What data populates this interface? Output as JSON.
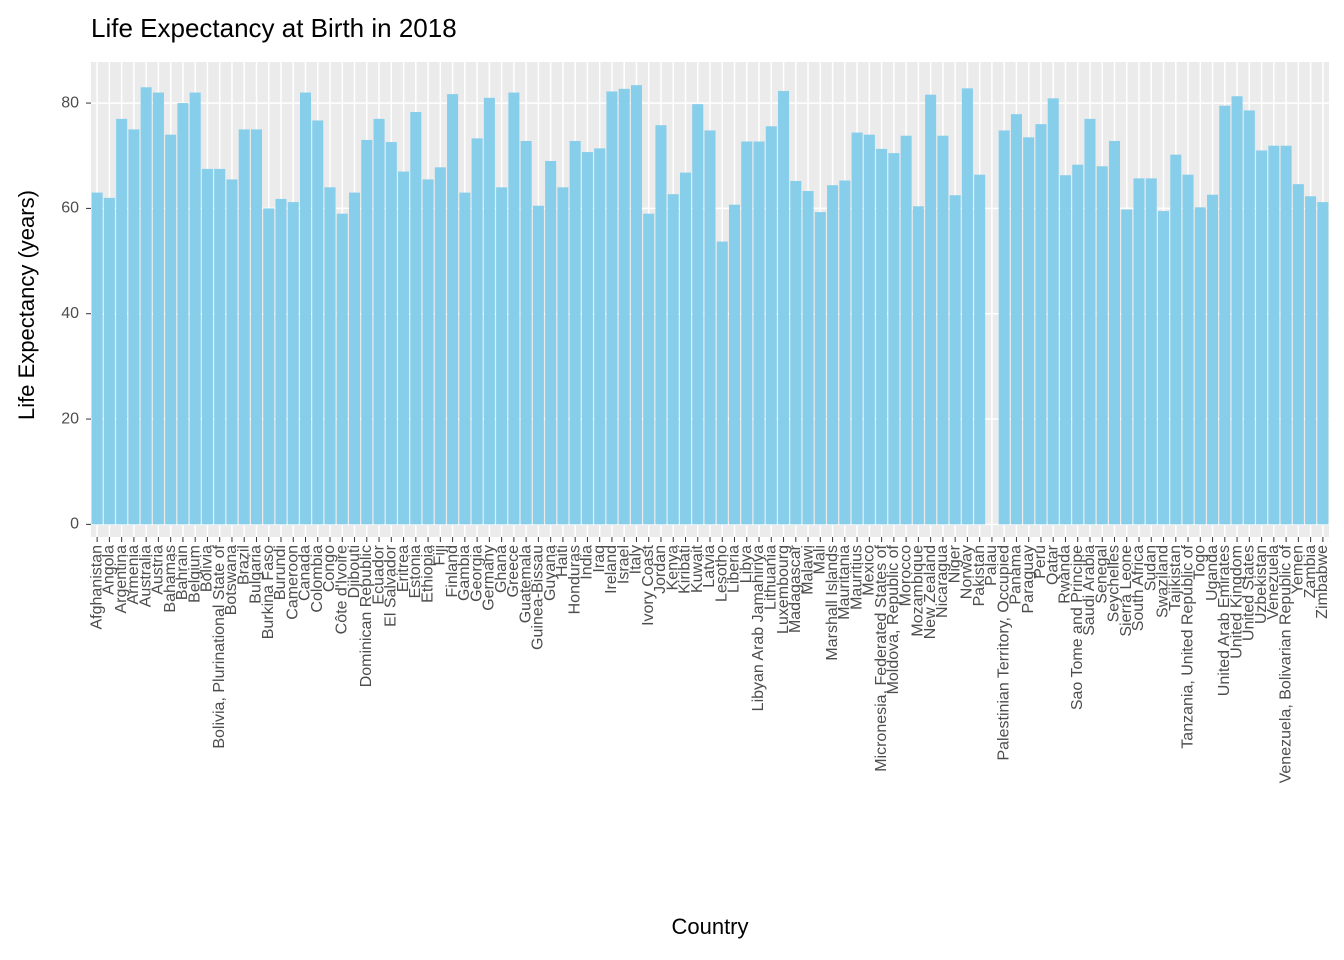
{
  "chart_data": {
    "type": "bar",
    "title": "Life Expectancy at Birth in 2018",
    "x_label": "Country",
    "y_label": "Life Expectancy (years)",
    "color": "#87ceeb",
    "grid": true,
    "categories": [
      "Afghanistan",
      "Angola",
      "Argentina",
      "Armenia",
      "Australia",
      "Austria",
      "Bahamas",
      "Bahrain",
      "Belgium",
      "Bolivia",
      "Bolivia, Plurinational State of",
      "Botswana",
      "Brazil",
      "Bulgaria",
      "Burkina Faso",
      "Burundi",
      "Cameroon",
      "Canada",
      "Colombia",
      "Congo",
      "Côte d'Ivoire",
      "Djibouti",
      "Dominican Republic",
      "Ecuador",
      "El Salvador",
      "Eritrea",
      "Estonia",
      "Ethiopia",
      "Fiji",
      "Finland",
      "Gambia",
      "Georgia",
      "Germany",
      "Ghana",
      "Greece",
      "Guatemala",
      "Guinea-Bissau",
      "Guyana",
      "Haiti",
      "Honduras",
      "India",
      "Iraq",
      "Ireland",
      "Israel",
      "Italy",
      "Ivory Coast",
      "Jordan",
      "Kenya",
      "Kiribati",
      "Kuwait",
      "Latvia",
      "Lesotho",
      "Liberia",
      "Libya",
      "Libyan Arab Jamahiriya",
      "Lithuania",
      "Luxembourg",
      "Madagascar",
      "Malawi",
      "Mali",
      "Marshall Islands",
      "Mauritania",
      "Mauritius",
      "Mexico",
      "Micronesia, Federated States of",
      "Moldova, Republic of",
      "Morocco",
      "Mozambique",
      "New Zealand",
      "Nicaragua",
      "Niger",
      "Norway",
      "Pakistan",
      "Palau",
      "Palestinian Territory, Occupied",
      "Panama",
      "Paraguay",
      "Peru",
      "Qatar",
      "Rwanda",
      "Sao Tome and Principe",
      "Saudi Arabia",
      "Senegal",
      "Seychelles",
      "Sierra Leone",
      "South Africa",
      "Sudan",
      "Swaziland",
      "Tajikistan",
      "Tanzania, United Republic of",
      "Togo",
      "Uganda",
      "United Arab Emirates",
      "United Kingdom",
      "United States",
      "Uzbekistan",
      "Venezuela",
      "Venezuela, Bolivarian Republic of",
      "Yemen",
      "Zambia",
      "Zimbabwe"
    ],
    "values": [
      63,
      62,
      77,
      75,
      83,
      82,
      74,
      80,
      82,
      67.5,
      67.5,
      65.5,
      75,
      75,
      60,
      61.8,
      61.2,
      82,
      76.7,
      64,
      59,
      63,
      73,
      77,
      72.6,
      67,
      78.3,
      65.5,
      67.8,
      81.7,
      63,
      73.3,
      81,
      64,
      82,
      72.8,
      60.5,
      69,
      64,
      72.8,
      70.7,
      71.4,
      82.2,
      82.7,
      83.4,
      59,
      75.8,
      62.7,
      66.8,
      79.8,
      74.8,
      53.7,
      60.7,
      72.7,
      72.7,
      75.6,
      82.3,
      65.2,
      63.3,
      59.3,
      64.4,
      65.3,
      74.4,
      74,
      71.3,
      70.5,
      73.8,
      60.4,
      81.6,
      73.8,
      62.5,
      82.8,
      66.4,
      null,
      74.8,
      77.9,
      73.5,
      76,
      80.9,
      66.3,
      68.3,
      77,
      68,
      72.8,
      59.8,
      65.7,
      65.7,
      59.5,
      70.2,
      66.4,
      60.2,
      62.6,
      79.5,
      81.3,
      78.6,
      71,
      71.9,
      71.9,
      64.6,
      62.3,
      61.2
    ],
    "ylim": [
      -2.4,
      87.8
    ],
    "yticks": [
      0,
      20,
      40,
      60,
      80
    ]
  }
}
